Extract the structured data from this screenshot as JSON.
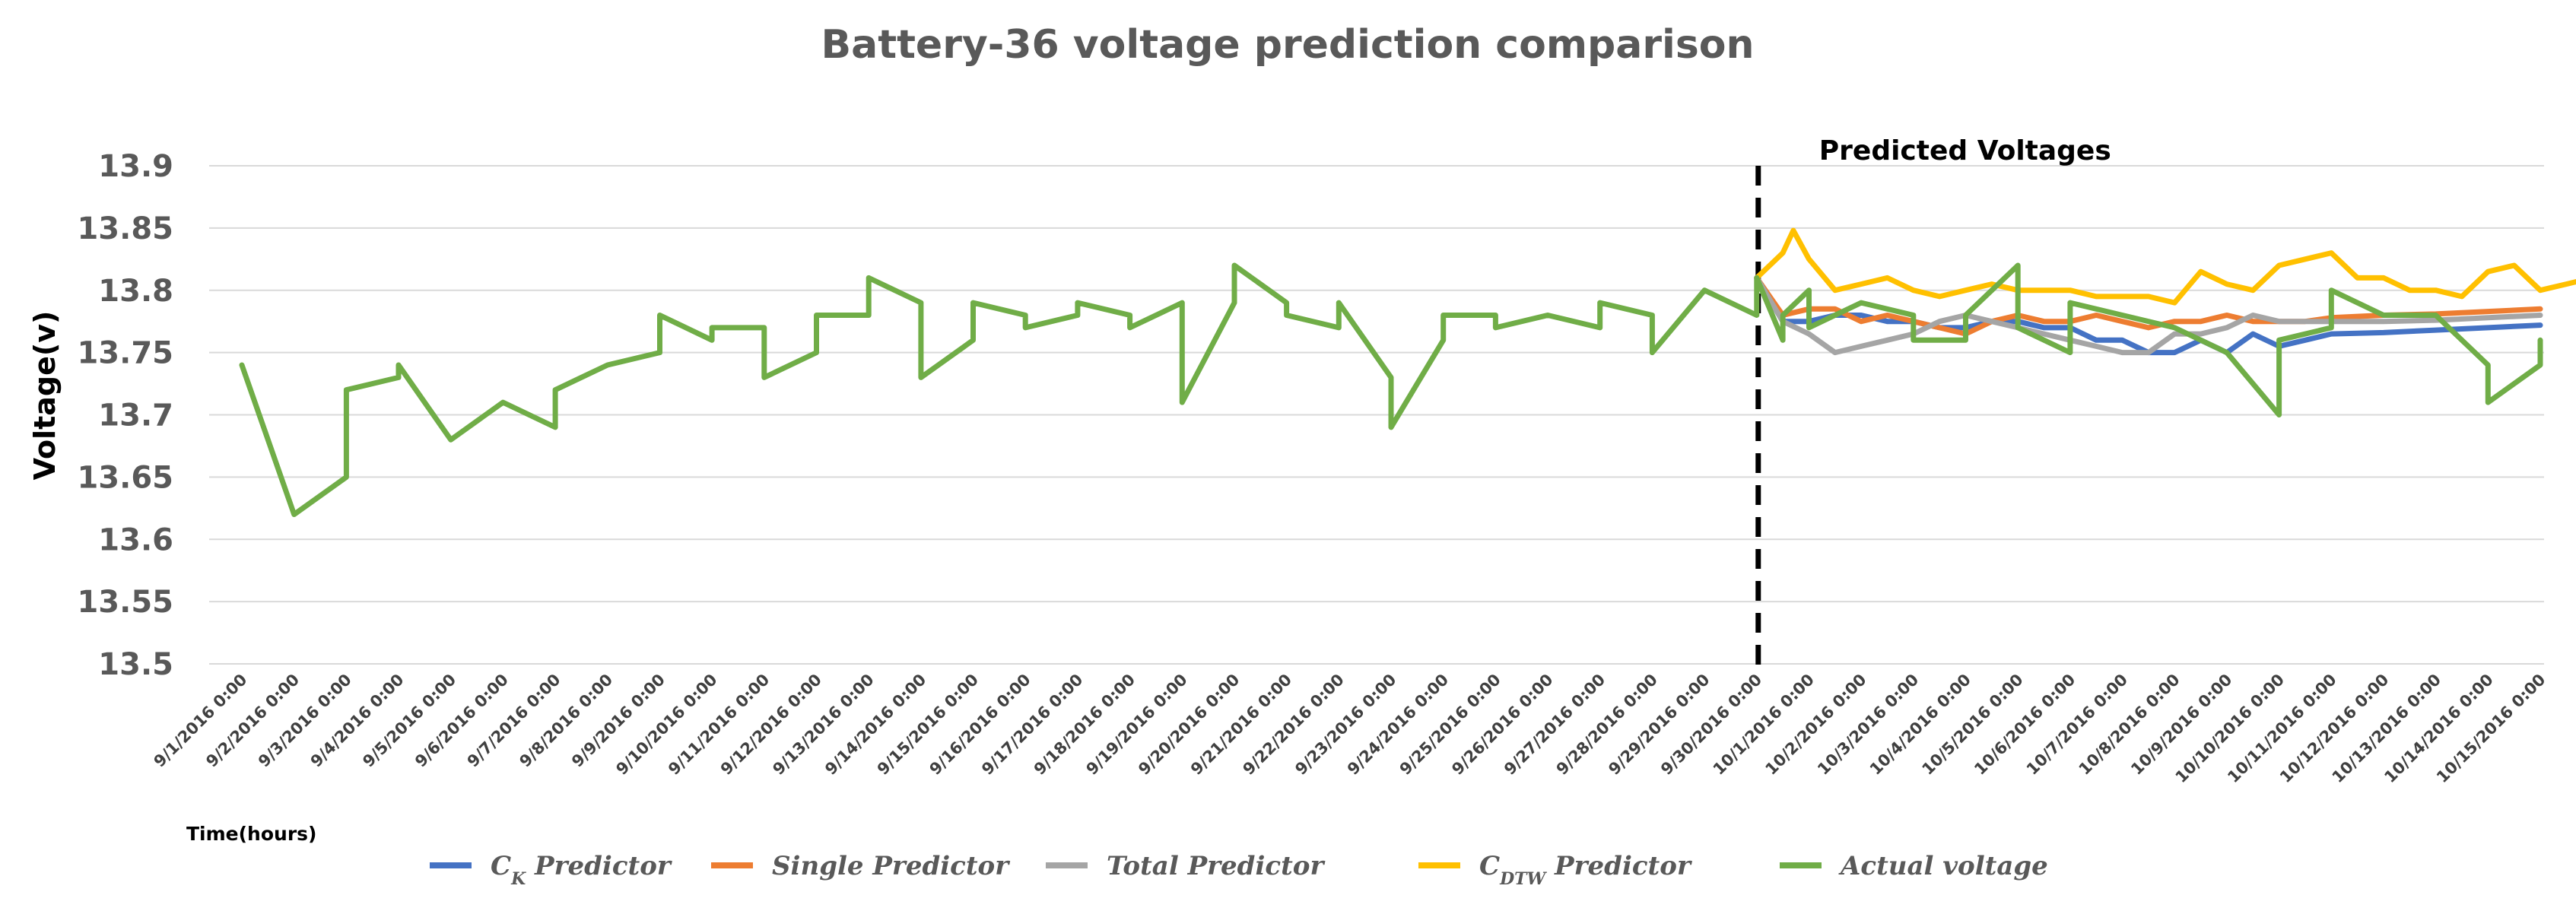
{
  "chart_data": {
    "type": "line",
    "title": "Battery-36 voltage prediction comparison",
    "xlabel": "Time(hours)",
    "ylabel": "Voltage(v)",
    "ylim": [
      13.5,
      13.9
    ],
    "yticks": [
      "13.5",
      "13.55",
      "13.6",
      "13.65",
      "13.7",
      "13.75",
      "13.8",
      "13.85",
      "13.9"
    ],
    "grid": true,
    "legend_position": "bottom",
    "annotation": {
      "text": "Predicted Voltages",
      "at_x": "9/30/2016 0:00",
      "style": "dashed vertical line"
    },
    "categories": [
      "9/1/2016 0:00",
      "9/2/2016 0:00",
      "9/3/2016 0:00",
      "9/4/2016 0:00",
      "9/5/2016 0:00",
      "9/6/2016 0:00",
      "9/7/2016 0:00",
      "9/8/2016 0:00",
      "9/9/2016 0:00",
      "9/10/2016 0:00",
      "9/11/2016 0:00",
      "9/12/2016 0:00",
      "9/13/2016 0:00",
      "9/14/2016 0:00",
      "9/15/2016 0:00",
      "9/16/2016 0:00",
      "9/17/2016 0:00",
      "9/18/2016 0:00",
      "9/19/2016 0:00",
      "9/20/2016 0:00",
      "9/21/2016 0:00",
      "9/22/2016 0:00",
      "9/23/2016 0:00",
      "9/24/2016 0:00",
      "9/25/2016 0:00",
      "9/26/2016 0:00",
      "9/27/2016 0:00",
      "9/28/2016 0:00",
      "9/29/2016 0:00",
      "9/30/2016 0:00",
      "10/1/2016 0:00",
      "10/2/2016 0:00",
      "10/3/2016 0:00",
      "10/4/2016 0:00",
      "10/5/2016 0:00",
      "10/6/2016 0:00",
      "10/7/2016 0:00",
      "10/8/2016 0:00",
      "10/9/2016 0:00",
      "10/10/2016 0:00",
      "10/11/2016 0:00",
      "10/12/2016 0:00",
      "10/13/2016 0:00",
      "10/14/2016 0:00",
      "10/15/2016 0:00"
    ],
    "series": [
      {
        "name": "C_K Predictor",
        "label_main": "C",
        "label_sub": "K",
        "label_rest": " Predictor",
        "color": "#4472C4",
        "points": [
          [
            29,
            13.81
          ],
          [
            29.5,
            13.775
          ],
          [
            30,
            13.775
          ],
          [
            30.5,
            13.78
          ],
          [
            31,
            13.78
          ],
          [
            31.5,
            13.775
          ],
          [
            32,
            13.775
          ],
          [
            32.5,
            13.77
          ],
          [
            33,
            13.77
          ],
          [
            33.5,
            13.775
          ],
          [
            34,
            13.775
          ],
          [
            34.5,
            13.77
          ],
          [
            35,
            13.77
          ],
          [
            35.5,
            13.76
          ],
          [
            36,
            13.76
          ],
          [
            36.5,
            13.75
          ],
          [
            37,
            13.75
          ],
          [
            37.5,
            13.76
          ],
          [
            38,
            13.75
          ],
          [
            38.5,
            13.765
          ],
          [
            39,
            13.755
          ],
          [
            39.5,
            13.76
          ],
          [
            40,
            13.765
          ],
          [
            41,
            13.766
          ],
          [
            42,
            13.768
          ],
          [
            43,
            13.77
          ],
          [
            44,
            13.772
          ]
        ]
      },
      {
        "name": "Single Predictor",
        "label_main": "Single Predictor",
        "label_sub": "",
        "label_rest": "",
        "color": "#ED7D31",
        "points": [
          [
            29,
            13.81
          ],
          [
            29.5,
            13.78
          ],
          [
            30,
            13.785
          ],
          [
            30.5,
            13.785
          ],
          [
            31,
            13.775
          ],
          [
            31.5,
            13.78
          ],
          [
            32,
            13.775
          ],
          [
            32.5,
            13.77
          ],
          [
            33,
            13.765
          ],
          [
            33.5,
            13.775
          ],
          [
            34,
            13.78
          ],
          [
            34.5,
            13.775
          ],
          [
            35,
            13.775
          ],
          [
            35.5,
            13.78
          ],
          [
            36,
            13.775
          ],
          [
            36.5,
            13.77
          ],
          [
            37,
            13.775
          ],
          [
            37.5,
            13.775
          ],
          [
            38,
            13.78
          ],
          [
            38.5,
            13.775
          ],
          [
            39,
            13.775
          ],
          [
            39.5,
            13.775
          ],
          [
            40,
            13.778
          ],
          [
            41,
            13.78
          ],
          [
            42,
            13.781
          ],
          [
            43,
            13.783
          ],
          [
            44,
            13.785
          ]
        ]
      },
      {
        "name": "Total Predictor",
        "label_main": "Total Predictor",
        "label_sub": "",
        "label_rest": "",
        "color": "#A5A5A5",
        "points": [
          [
            29,
            13.81
          ],
          [
            29.5,
            13.775
          ],
          [
            30,
            13.765
          ],
          [
            30.5,
            13.75
          ],
          [
            31,
            13.755
          ],
          [
            31.5,
            13.76
          ],
          [
            32,
            13.765
          ],
          [
            32.5,
            13.775
          ],
          [
            33,
            13.78
          ],
          [
            33.5,
            13.775
          ],
          [
            34,
            13.77
          ],
          [
            34.5,
            13.765
          ],
          [
            35,
            13.76
          ],
          [
            35.5,
            13.755
          ],
          [
            36,
            13.75
          ],
          [
            36.5,
            13.75
          ],
          [
            37,
            13.765
          ],
          [
            37.5,
            13.765
          ],
          [
            38,
            13.77
          ],
          [
            38.5,
            13.78
          ],
          [
            39,
            13.775
          ],
          [
            39.5,
            13.775
          ],
          [
            40,
            13.775
          ],
          [
            41,
            13.775
          ],
          [
            42,
            13.776
          ],
          [
            43,
            13.778
          ],
          [
            44,
            13.78
          ]
        ]
      },
      {
        "name": "C_DTW Predictor",
        "label_main": "C",
        "label_sub": "DTW",
        "label_rest": " Predictor",
        "color": "#FFC000",
        "points": [
          [
            29,
            13.81
          ],
          [
            29.5,
            13.83
          ],
          [
            29.7,
            13.848
          ],
          [
            30,
            13.825
          ],
          [
            30.5,
            13.8
          ],
          [
            31,
            13.805
          ],
          [
            31.5,
            13.81
          ],
          [
            32,
            13.8
          ],
          [
            32.5,
            13.795
          ],
          [
            33,
            13.8
          ],
          [
            33.5,
            13.805
          ],
          [
            34,
            13.8
          ],
          [
            34.5,
            13.8
          ],
          [
            35,
            13.8
          ],
          [
            35.5,
            13.795
          ],
          [
            36,
            13.795
          ],
          [
            36.5,
            13.795
          ],
          [
            37,
            13.79
          ],
          [
            37.5,
            13.815
          ],
          [
            38,
            13.805
          ],
          [
            38.5,
            13.8
          ],
          [
            39,
            13.82
          ],
          [
            39.5,
            13.825
          ],
          [
            40,
            13.83
          ],
          [
            40.5,
            13.81
          ],
          [
            41,
            13.81
          ],
          [
            41.5,
            13.8
          ],
          [
            42,
            13.8
          ],
          [
            42.5,
            13.795
          ],
          [
            43,
            13.815
          ],
          [
            43.5,
            13.82
          ],
          [
            44,
            13.8
          ],
          [
            44.5,
            13.805
          ],
          [
            45,
            13.81
          ]
        ]
      },
      {
        "name": "Actual voltage",
        "label_main": "Actual voltage",
        "label_sub": "",
        "label_rest": "",
        "color": "#70AD47",
        "points": [
          [
            0,
            13.74
          ],
          [
            1,
            13.62
          ],
          [
            2,
            13.65
          ],
          [
            2,
            13.72
          ],
          [
            3,
            13.73
          ],
          [
            3,
            13.74
          ],
          [
            4,
            13.68
          ],
          [
            5,
            13.71
          ],
          [
            6,
            13.69
          ],
          [
            6,
            13.72
          ],
          [
            7,
            13.74
          ],
          [
            8,
            13.75
          ],
          [
            8,
            13.78
          ],
          [
            9,
            13.76
          ],
          [
            9,
            13.77
          ],
          [
            10,
            13.77
          ],
          [
            10,
            13.73
          ],
          [
            11,
            13.75
          ],
          [
            11,
            13.78
          ],
          [
            12,
            13.78
          ],
          [
            12,
            13.81
          ],
          [
            13,
            13.79
          ],
          [
            13,
            13.73
          ],
          [
            14,
            13.76
          ],
          [
            14,
            13.79
          ],
          [
            15,
            13.78
          ],
          [
            15,
            13.77
          ],
          [
            16,
            13.78
          ],
          [
            16,
            13.79
          ],
          [
            17,
            13.78
          ],
          [
            17,
            13.77
          ],
          [
            18,
            13.79
          ],
          [
            18,
            13.71
          ],
          [
            19,
            13.79
          ],
          [
            19,
            13.82
          ],
          [
            20,
            13.79
          ],
          [
            20,
            13.78
          ],
          [
            21,
            13.77
          ],
          [
            21,
            13.79
          ],
          [
            22,
            13.73
          ],
          [
            22,
            13.69
          ],
          [
            23,
            13.76
          ],
          [
            23,
            13.78
          ],
          [
            24,
            13.78
          ],
          [
            24,
            13.77
          ],
          [
            25,
            13.78
          ],
          [
            26,
            13.77
          ],
          [
            26,
            13.79
          ],
          [
            27,
            13.78
          ],
          [
            27,
            13.75
          ],
          [
            28,
            13.8
          ],
          [
            29,
            13.78
          ],
          [
            29,
            13.81
          ],
          [
            29.5,
            13.76
          ],
          [
            29.5,
            13.78
          ],
          [
            30,
            13.8
          ],
          [
            30,
            13.77
          ],
          [
            31,
            13.79
          ],
          [
            32,
            13.78
          ],
          [
            32,
            13.76
          ],
          [
            33,
            13.76
          ],
          [
            33,
            13.78
          ],
          [
            34,
            13.82
          ],
          [
            34,
            13.77
          ],
          [
            35,
            13.75
          ],
          [
            35,
            13.79
          ],
          [
            36,
            13.78
          ],
          [
            37,
            13.77
          ],
          [
            38,
            13.75
          ],
          [
            39,
            13.7
          ],
          [
            39,
            13.76
          ],
          [
            40,
            13.77
          ],
          [
            40,
            13.8
          ],
          [
            41,
            13.78
          ],
          [
            42,
            13.78
          ],
          [
            43,
            13.74
          ],
          [
            43,
            13.71
          ],
          [
            44,
            13.74
          ],
          [
            44,
            13.76
          ]
        ]
      }
    ]
  }
}
